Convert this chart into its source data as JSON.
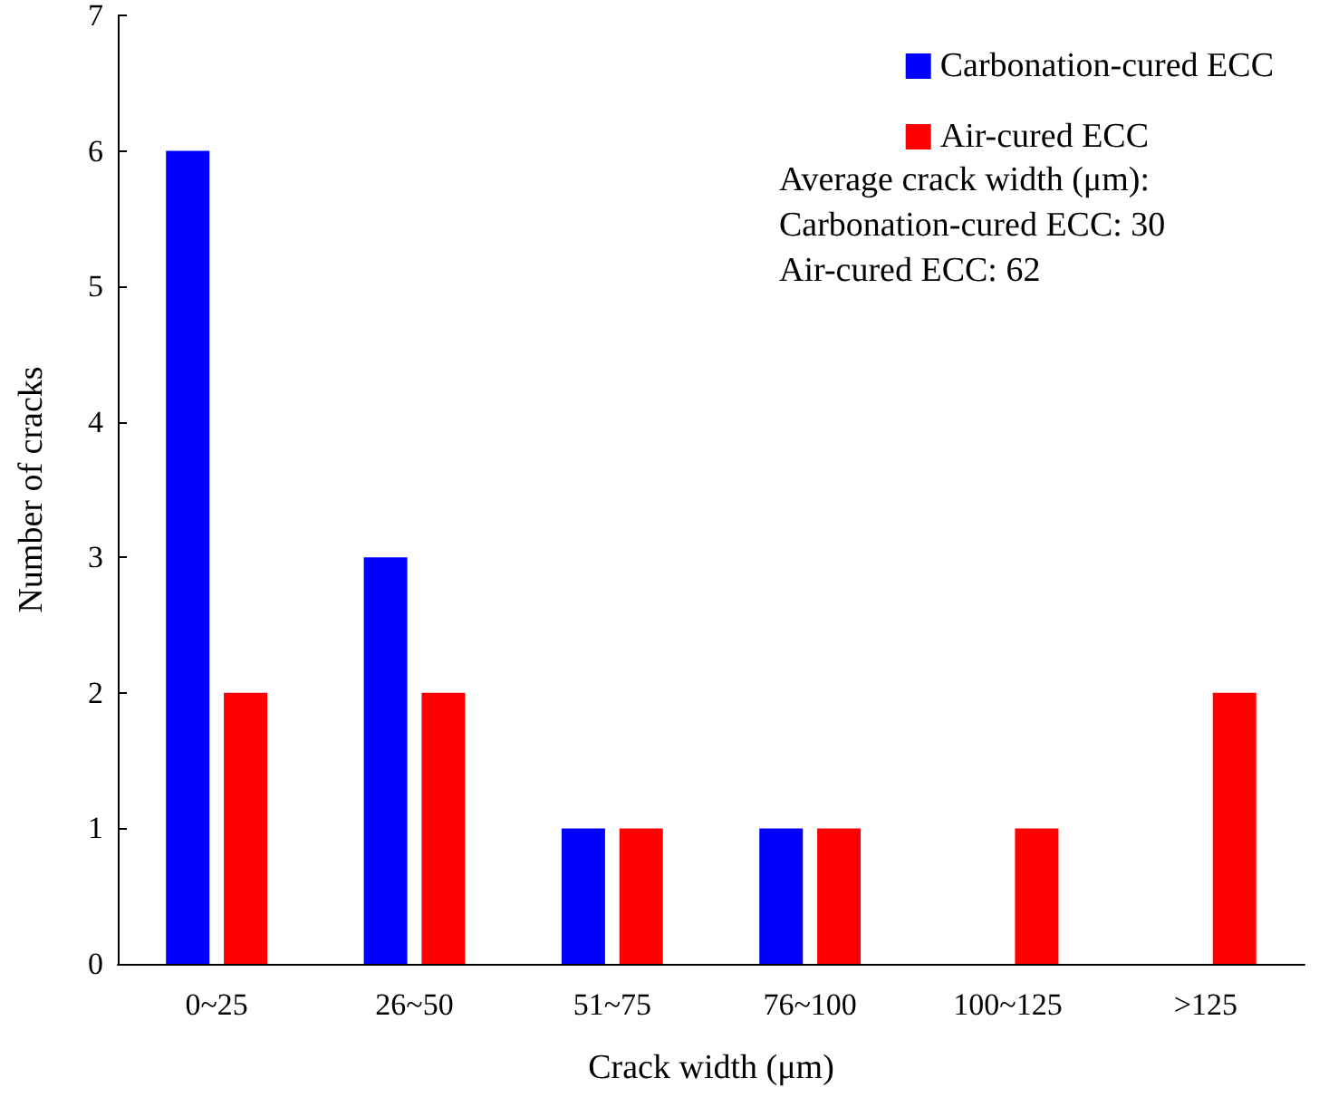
{
  "chart_data": {
    "type": "bar",
    "xlabel": "Crack width (μm)",
    "ylabel": "Number of cracks",
    "categories": [
      "0~25",
      "26~50",
      "51~75",
      "76~100",
      "100~125",
      ">125"
    ],
    "series": [
      {
        "name": "Carbonation-cured ECC",
        "color": "#0000ff",
        "values": [
          6,
          3,
          1,
          1,
          0,
          0
        ]
      },
      {
        "name": "Air-cured ECC",
        "color": "#ff0000",
        "values": [
          2,
          2,
          1,
          1,
          1,
          2
        ]
      }
    ],
    "ylim": [
      0,
      7
    ],
    "yticks": [
      0,
      1,
      2,
      3,
      4,
      5,
      6,
      7
    ],
    "grid": false,
    "legend": "top right",
    "annotations": [
      "Average crack width (μm):",
      "Carbonation-cured ECC: 30",
      "Air-cured ECC: 62"
    ]
  }
}
